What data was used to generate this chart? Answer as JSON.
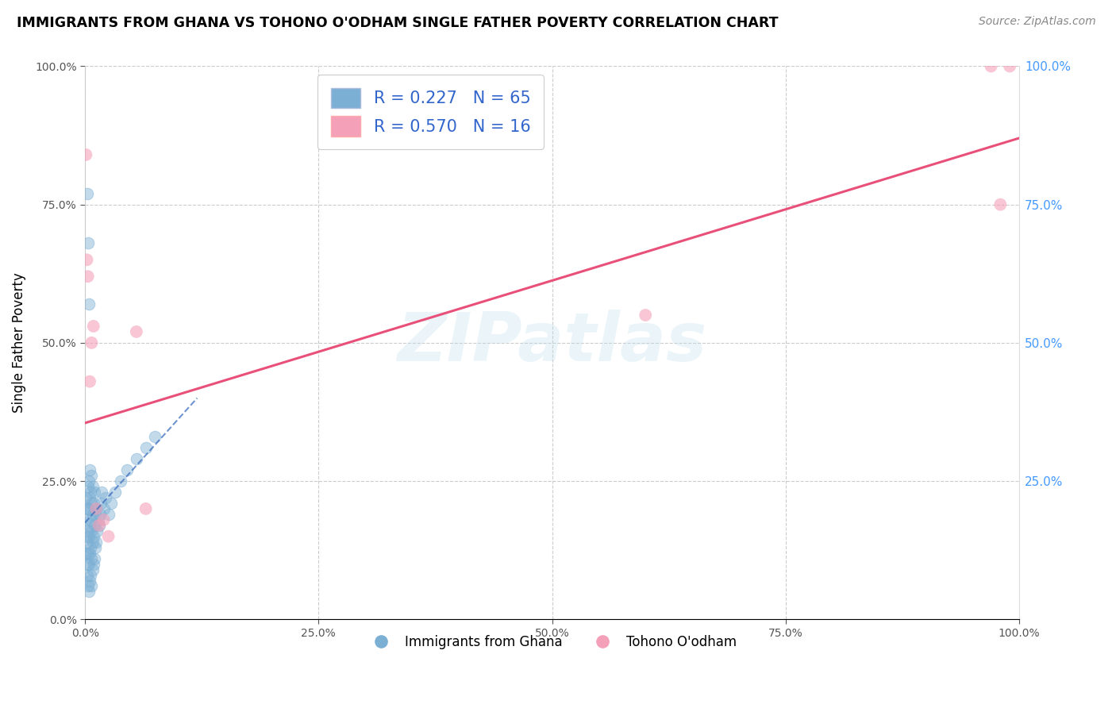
{
  "title": "IMMIGRANTS FROM GHANA VS TOHONO O'ODHAM SINGLE FATHER POVERTY CORRELATION CHART",
  "source": "Source: ZipAtlas.com",
  "ylabel": "Single Father Poverty",
  "legend_label1": "Immigrants from Ghana",
  "legend_label2": "Tohono O'odham",
  "R1": 0.227,
  "N1": 65,
  "R2": 0.57,
  "N2": 16,
  "blue_color": "#7BAFD4",
  "pink_color": "#F4A0B8",
  "blue_line_color": "#3366BB",
  "pink_line_color": "#E8507A",
  "watermark_zip": "ZIP",
  "watermark_atlas": "atlas",
  "xlim": [
    0,
    1.0
  ],
  "ylim": [
    0,
    1.0
  ],
  "blue_dots_x": [
    0.0005,
    0.001,
    0.001,
    0.0015,
    0.002,
    0.002,
    0.002,
    0.0025,
    0.003,
    0.003,
    0.003,
    0.003,
    0.003,
    0.004,
    0.004,
    0.004,
    0.004,
    0.004,
    0.005,
    0.005,
    0.005,
    0.005,
    0.005,
    0.006,
    0.006,
    0.006,
    0.006,
    0.007,
    0.007,
    0.007,
    0.007,
    0.007,
    0.008,
    0.008,
    0.008,
    0.008,
    0.009,
    0.009,
    0.009,
    0.01,
    0.01,
    0.01,
    0.011,
    0.011,
    0.012,
    0.012,
    0.013,
    0.014,
    0.015,
    0.016,
    0.017,
    0.018,
    0.02,
    0.022,
    0.025,
    0.028,
    0.032,
    0.038,
    0.045,
    0.055,
    0.065,
    0.075,
    0.002,
    0.003,
    0.004
  ],
  "blue_dots_y": [
    0.18,
    0.12,
    0.22,
    0.15,
    0.08,
    0.14,
    0.2,
    0.1,
    0.06,
    0.12,
    0.16,
    0.2,
    0.24,
    0.05,
    0.1,
    0.15,
    0.2,
    0.25,
    0.07,
    0.12,
    0.17,
    0.22,
    0.27,
    0.08,
    0.13,
    0.18,
    0.23,
    0.06,
    0.11,
    0.16,
    0.21,
    0.26,
    0.09,
    0.14,
    0.19,
    0.24,
    0.1,
    0.15,
    0.21,
    0.11,
    0.17,
    0.23,
    0.13,
    0.19,
    0.14,
    0.2,
    0.16,
    0.18,
    0.17,
    0.19,
    0.21,
    0.23,
    0.2,
    0.22,
    0.19,
    0.21,
    0.23,
    0.25,
    0.27,
    0.29,
    0.31,
    0.33,
    0.77,
    0.68,
    0.57
  ],
  "pink_dots_x": [
    0.001,
    0.002,
    0.003,
    0.005,
    0.007,
    0.009,
    0.012,
    0.015,
    0.02,
    0.025,
    0.055,
    0.065,
    0.6,
    0.97,
    0.98,
    0.99
  ],
  "pink_dots_y": [
    0.84,
    0.65,
    0.62,
    0.43,
    0.5,
    0.53,
    0.2,
    0.17,
    0.18,
    0.15,
    0.52,
    0.2,
    0.55,
    1.0,
    0.75,
    1.0
  ],
  "blue_line_x0": 0.0,
  "blue_line_y0": 0.175,
  "blue_line_x1": 0.12,
  "blue_line_y1": 0.4,
  "pink_line_x0": 0.0,
  "pink_line_y0": 0.355,
  "pink_line_x1": 1.0,
  "pink_line_y1": 0.87
}
